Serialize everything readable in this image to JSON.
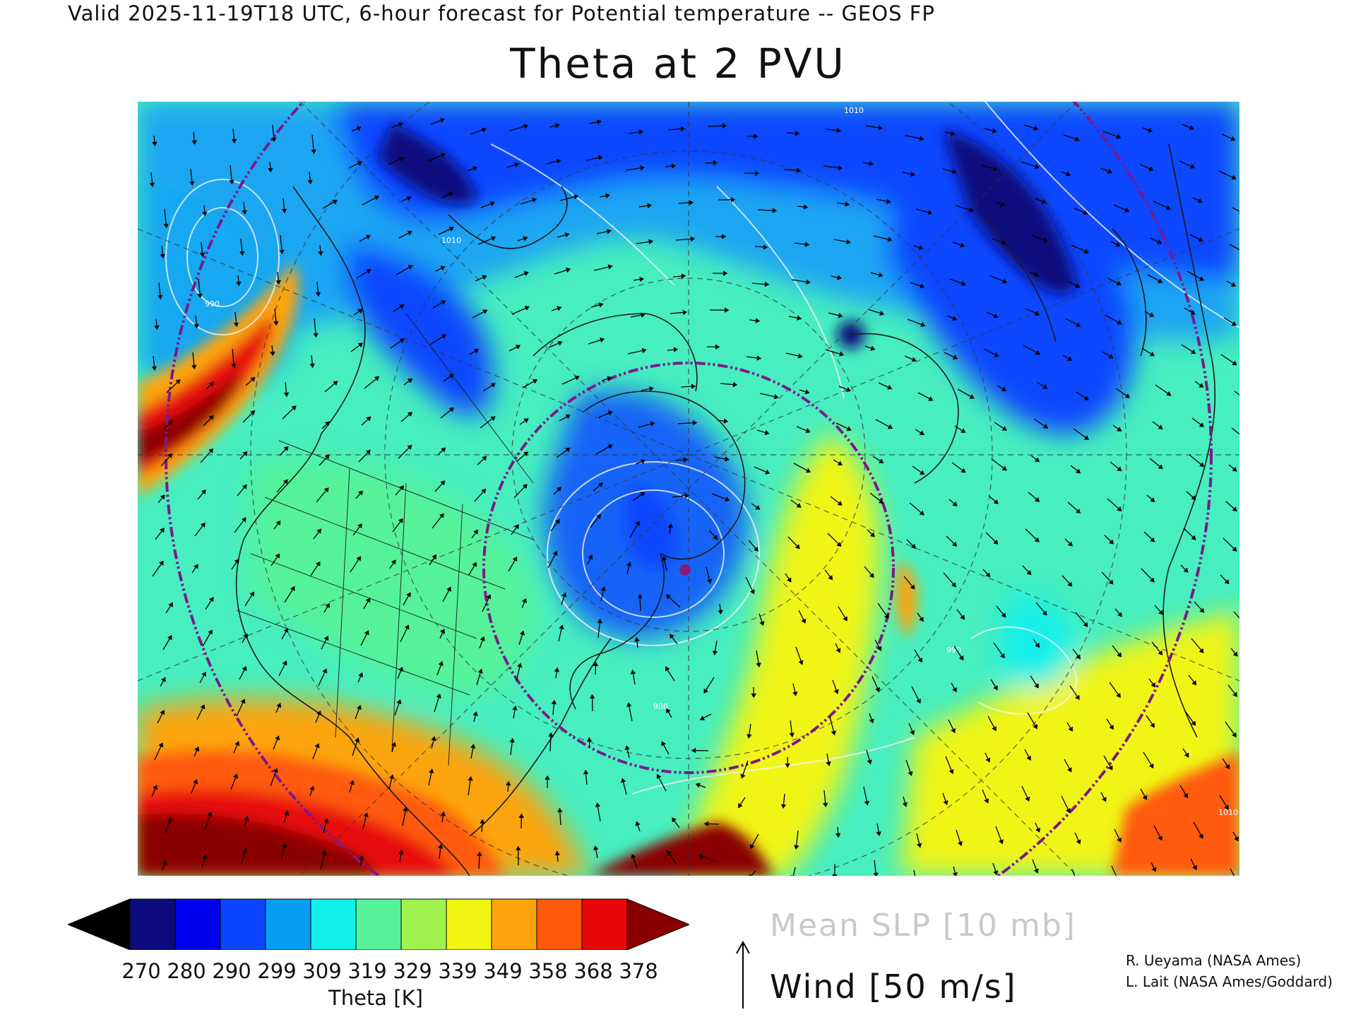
{
  "header": {
    "valid_line": "Valid 2025-11-19T18 UTC, 6-hour forecast for Potential temperature -- GEOS FP",
    "title": "Theta at 2 PVU"
  },
  "map": {
    "projection": "polar stereographic (North America / North Atlantic)",
    "layers": [
      "theta-fill",
      "slp-contours",
      "wind-vectors",
      "coastlines",
      "graticule",
      "polar-circles"
    ],
    "slp_contour_labels": [
      "990",
      "1010",
      "1010",
      "1010",
      "980",
      "990"
    ],
    "north_pole_marker_color": "#8a1a7c"
  },
  "colorbar": {
    "label": "Theta [K]",
    "ticks": [
      "270",
      "280",
      "290",
      "299",
      "309",
      "319",
      "329",
      "339",
      "349",
      "358",
      "368",
      "378"
    ],
    "colors": [
      "#000000",
      "#0b0b7e",
      "#0000f0",
      "#0a46ff",
      "#069ef5",
      "#13f0ea",
      "#55f29a",
      "#a0f24e",
      "#f0f512",
      "#fca40a",
      "#ff5a08",
      "#e80808",
      "#8a0000"
    ]
  },
  "legend": {
    "slp_label": "Mean SLP [10 mb]",
    "wind_label": "Wind [50 m/s]"
  },
  "credits": [
    "R. Ueyama (NASA Ames)",
    "L. Lait (NASA Ames/Goddard)"
  ]
}
